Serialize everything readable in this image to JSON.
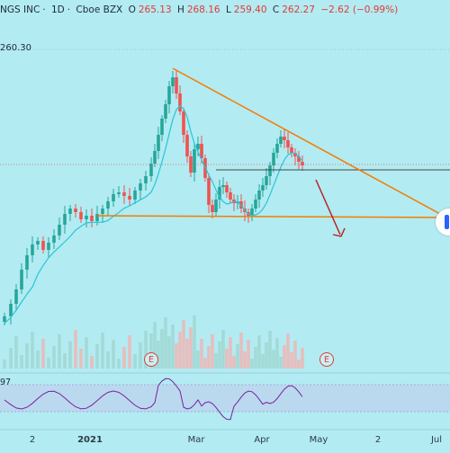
{
  "header": {
    "symbol_fragment": "NGS INC",
    "interval": "1D",
    "exchange": "Cboe BZX",
    "open_label": "O",
    "open_value": "265.13",
    "high_label": "H",
    "high_value": "268.16",
    "low_label": "L",
    "low_value": "259.40",
    "close_label": "C",
    "close_value": "262.27",
    "change": "−2.62 (−0.99%)"
  },
  "price_axis_label": "260.30",
  "rsi_label": "97",
  "earnings_marker": "E",
  "x_ticks": [
    {
      "label": "2",
      "bold": false
    },
    {
      "label": "2021",
      "bold": true
    },
    {
      "label": "Mar",
      "bold": false
    },
    {
      "label": "Apr",
      "bold": false
    },
    {
      "label": "May",
      "bold": false
    },
    {
      "label": "2",
      "bold": false
    },
    {
      "label": "Jul",
      "bold": false
    }
  ],
  "colors": {
    "background": "#b2ebf2",
    "up": "#26a69a",
    "down": "#ef5350",
    "trendline": "#f57c00",
    "arrow": "#b71c1c",
    "ma": "#26c6da",
    "rsi": "#7b1fa2",
    "price_line": "#444444"
  },
  "icons": [
    "earnings-e-icon",
    "scroll-handle-icon"
  ]
}
